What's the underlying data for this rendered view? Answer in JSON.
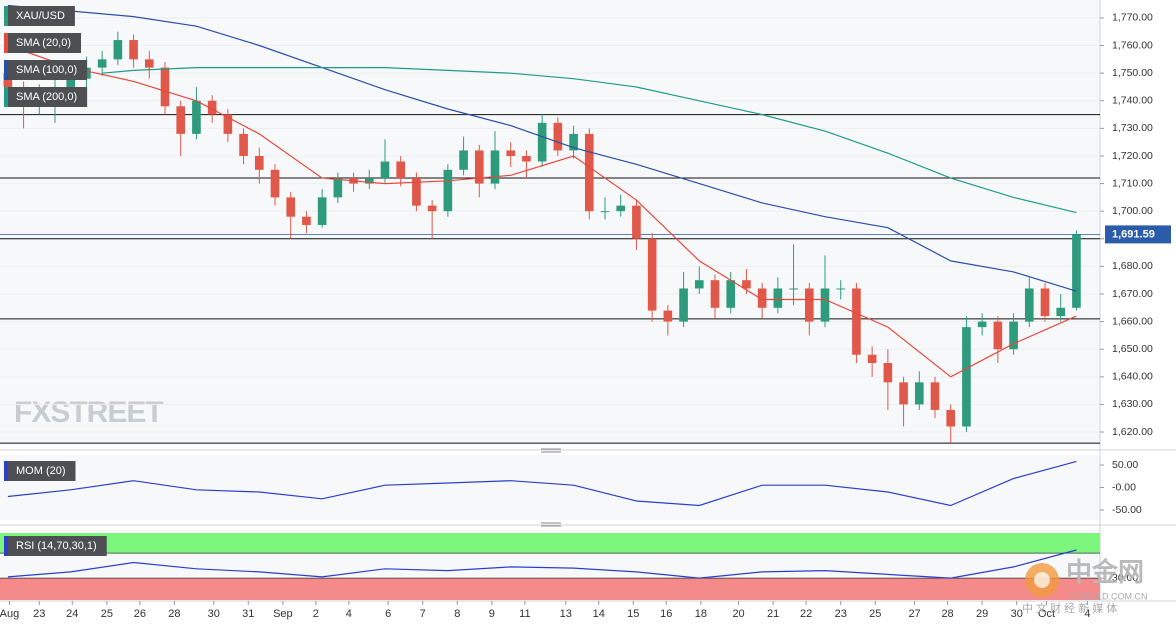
{
  "chart_data": [
    {
      "type": "candlestick",
      "xlim": [
        -0.5,
        69.5
      ],
      "ylim": [
        1615.3,
        1776.5
      ],
      "grid": true,
      "yticks": [
        {
          "value": 1620,
          "label": "1,620.00"
        },
        {
          "value": 1630,
          "label": "1,630.00"
        },
        {
          "value": 1640,
          "label": "1,640.00"
        },
        {
          "value": 1650,
          "label": "1,650.00"
        },
        {
          "value": 1660,
          "label": "1,660.00"
        },
        {
          "value": 1670,
          "label": "1,670.00"
        },
        {
          "value": 1680,
          "label": "1,680.00"
        },
        {
          "value": 1690,
          "label": "1,690.00"
        },
        {
          "value": 1700,
          "label": "1,700.00"
        },
        {
          "value": 1710,
          "label": "1,710.00"
        },
        {
          "value": 1720,
          "label": "1,720.00"
        },
        {
          "value": 1730,
          "label": "1,730.00"
        },
        {
          "value": 1740,
          "label": "1,740.00"
        },
        {
          "value": 1750,
          "label": "1,750.00"
        },
        {
          "value": 1760,
          "label": "1,760.00"
        },
        {
          "value": 1770,
          "label": "1,770.00"
        }
      ],
      "candles": {
        "name": "XAU/USD",
        "up_color": "#2f9b7d",
        "down_color": "#e0584a",
        "open": [
          1750,
          1745,
          1738,
          1742,
          1745,
          1748,
          1752,
          1755,
          1762,
          1755,
          1752,
          1738,
          1728,
          1740,
          1735,
          1728,
          1720,
          1715,
          1705,
          1698,
          1695,
          1705,
          1712,
          1710,
          1712,
          1718,
          1712,
          1702,
          1700,
          1715,
          1722,
          1710,
          1722,
          1720,
          1718,
          1732,
          1722,
          1728,
          1700,
          1700,
          1702,
          1690,
          1664,
          1660,
          1672,
          1675,
          1665,
          1675,
          1672,
          1665,
          1672,
          1672,
          1660,
          1672,
          1672,
          1648,
          1645,
          1638,
          1630,
          1638,
          1628,
          1622,
          1658,
          1660,
          1650,
          1660,
          1672,
          1662,
          1665
        ],
        "high": [
          1752,
          1747,
          1746,
          1748,
          1750,
          1756,
          1758,
          1765,
          1764,
          1758,
          1754,
          1740,
          1745,
          1742,
          1737,
          1730,
          1723,
          1717,
          1707,
          1700,
          1708,
          1714,
          1714,
          1715,
          1726,
          1720,
          1714,
          1704,
          1717,
          1727,
          1724,
          1729,
          1725,
          1722,
          1735,
          1734,
          1731,
          1730,
          1705,
          1706,
          1704,
          1692,
          1666,
          1678,
          1680,
          1677,
          1678,
          1679,
          1674,
          1676,
          1688,
          1674,
          1684,
          1675,
          1674,
          1651,
          1650,
          1640,
          1642,
          1640,
          1630,
          1662,
          1663,
          1662,
          1663,
          1676,
          1674,
          1670,
          1693
        ],
        "low": [
          1740,
          1730,
          1735,
          1732,
          1742,
          1745,
          1749,
          1753,
          1752,
          1748,
          1735,
          1720,
          1726,
          1732,
          1725,
          1717,
          1710,
          1702,
          1690,
          1692,
          1694,
          1703,
          1707,
          1708,
          1710,
          1709,
          1700,
          1690,
          1698,
          1713,
          1705,
          1708,
          1716,
          1712,
          1716,
          1720,
          1719,
          1697,
          1697,
          1698,
          1686,
          1660,
          1655,
          1658,
          1670,
          1661,
          1663,
          1670,
          1661,
          1663,
          1666,
          1655,
          1658,
          1668,
          1645,
          1640,
          1628,
          1622,
          1628,
          1625,
          1616,
          1620,
          1655,
          1645,
          1648,
          1658,
          1660,
          1660,
          1664
        ],
        "close": [
          1745,
          1738,
          1742,
          1745,
          1748,
          1752,
          1755,
          1762,
          1755,
          1752,
          1738,
          1728,
          1740,
          1735,
          1728,
          1720,
          1715,
          1705,
          1698,
          1695,
          1705,
          1712,
          1710,
          1712,
          1718,
          1712,
          1702,
          1700,
          1715,
          1722,
          1710,
          1722,
          1720,
          1718,
          1732,
          1722,
          1728,
          1700,
          1700,
          1702,
          1690,
          1664,
          1660,
          1672,
          1675,
          1665,
          1675,
          1672,
          1665,
          1672,
          1672,
          1660,
          1672,
          1672,
          1648,
          1645,
          1638,
          1630,
          1638,
          1628,
          1622,
          1658,
          1660,
          1650,
          1660,
          1672,
          1662,
          1665,
          1691.59
        ]
      },
      "series": [
        {
          "name": "SMA (20,0)",
          "color": "#e8483b",
          "x": [
            0,
            4,
            8,
            12,
            16,
            20,
            24,
            28,
            32,
            36,
            40,
            44,
            48,
            52,
            56,
            60,
            64,
            68
          ],
          "values": [
            1760,
            1752,
            1747,
            1740,
            1728,
            1712,
            1710,
            1711,
            1713,
            1720,
            1704,
            1682,
            1668,
            1668,
            1658,
            1640,
            1652,
            1662
          ]
        },
        {
          "name": "SMA (100,0)",
          "color": "#2a4fa8",
          "x": [
            0,
            4,
            8,
            12,
            16,
            20,
            24,
            28,
            32,
            36,
            40,
            44,
            48,
            52,
            56,
            60,
            64,
            68
          ],
          "values": [
            1774.5,
            1772.5,
            1770.5,
            1767,
            1760,
            1752,
            1744,
            1737,
            1731,
            1723,
            1717,
            1710,
            1703,
            1698,
            1694,
            1682,
            1678,
            1671
          ]
        },
        {
          "name": "SMA (200,0)",
          "color": "#1f9b8a",
          "x": [
            6,
            8,
            12,
            16,
            20,
            24,
            28,
            32,
            36,
            40,
            44,
            48,
            52,
            56,
            60,
            64,
            68
          ],
          "values": [
            1750,
            1751,
            1752,
            1752,
            1752,
            1752,
            1751,
            1750,
            1748,
            1745,
            1740,
            1735,
            1729,
            1721,
            1712,
            1705,
            1699.5
          ]
        }
      ],
      "levels": [
        1735,
        1712,
        1690,
        1661,
        1616
      ],
      "last_price": {
        "value": 1691.59,
        "label": "1,691.59",
        "color": "#2a5caa"
      }
    },
    {
      "type": "line",
      "xlim": [
        -0.5,
        69.5
      ],
      "ylim": [
        -72.2,
        72.2
      ],
      "yticks": [
        {
          "value": 50,
          "label": "50.00"
        },
        {
          "value": 0,
          "label": "-0.00"
        },
        {
          "value": -50,
          "label": "-50.00"
        }
      ],
      "series": [
        {
          "name": "MOM (20)",
          "color": "#2b3fcc",
          "x": [
            0,
            4,
            8,
            12,
            16,
            20,
            24,
            28,
            32,
            36,
            40,
            44,
            48,
            52,
            56,
            60,
            64,
            68
          ],
          "values": [
            -20,
            -5,
            15,
            -5,
            -10,
            -25,
            5,
            10,
            15,
            5,
            -30,
            -40,
            5,
            5,
            -10,
            -40,
            20,
            58
          ]
        }
      ]
    },
    {
      "type": "line",
      "xlim": [
        -0.5,
        69.5
      ],
      "ylim": [
        -5,
        107
      ],
      "yticks": [
        {
          "value": 30,
          "label": "30.00"
        }
      ],
      "overbought": 70,
      "oversold": 30,
      "zone_colors": [
        "#7cf57c",
        "#f58a8a"
      ],
      "series": [
        {
          "name": "RSI (14,70,30,1)",
          "color": "#2b3fcc",
          "x": [
            0,
            4,
            8,
            12,
            16,
            20,
            24,
            28,
            32,
            36,
            40,
            44,
            48,
            52,
            56,
            60,
            64,
            68
          ],
          "values": [
            32,
            40,
            55,
            45,
            40,
            32,
            45,
            42,
            48,
            46,
            40,
            30,
            40,
            42,
            36,
            30,
            48,
            75
          ]
        }
      ],
      "xticks": [
        {
          "value": 0.1,
          "label": "Aug"
        },
        {
          "value": 2.0,
          "label": "23"
        },
        {
          "value": 4.1,
          "label": "24"
        },
        {
          "value": 6.3,
          "label": "25"
        },
        {
          "value": 8.4,
          "label": "26"
        },
        {
          "value": 10.6,
          "label": "28"
        },
        {
          "value": 13.1,
          "label": "30"
        },
        {
          "value": 15.3,
          "label": "31"
        },
        {
          "value": 17.5,
          "label": "Sep"
        },
        {
          "value": 19.6,
          "label": "2"
        },
        {
          "value": 21.7,
          "label": "4"
        },
        {
          "value": 24.2,
          "label": "6"
        },
        {
          "value": 26.4,
          "label": "7"
        },
        {
          "value": 28.6,
          "label": "8"
        },
        {
          "value": 30.8,
          "label": "9"
        },
        {
          "value": 32.9,
          "label": "11"
        },
        {
          "value": 35.5,
          "label": "13"
        },
        {
          "value": 37.6,
          "label": "14"
        },
        {
          "value": 39.8,
          "label": "15"
        },
        {
          "value": 41.9,
          "label": "16"
        },
        {
          "value": 44.1,
          "label": "18"
        },
        {
          "value": 46.5,
          "label": "20"
        },
        {
          "value": 48.7,
          "label": "21"
        },
        {
          "value": 50.8,
          "label": "22"
        },
        {
          "value": 53.0,
          "label": "23"
        },
        {
          "value": 55.2,
          "label": "25"
        },
        {
          "value": 57.7,
          "label": "27"
        },
        {
          "value": 59.8,
          "label": "28"
        },
        {
          "value": 62.0,
          "label": "29"
        },
        {
          "value": 64.2,
          "label": "30"
        },
        {
          "value": 66.1,
          "label": "Oct"
        },
        {
          "value": 68.7,
          "label": "4"
        }
      ]
    }
  ],
  "watermarks": {
    "brand": "FXSTREET",
    "cn_name": "中金网",
    "cn_site": "CNGOLD.COM.CN",
    "cn_slogan": "中 文 财 经 新 媒 体"
  }
}
